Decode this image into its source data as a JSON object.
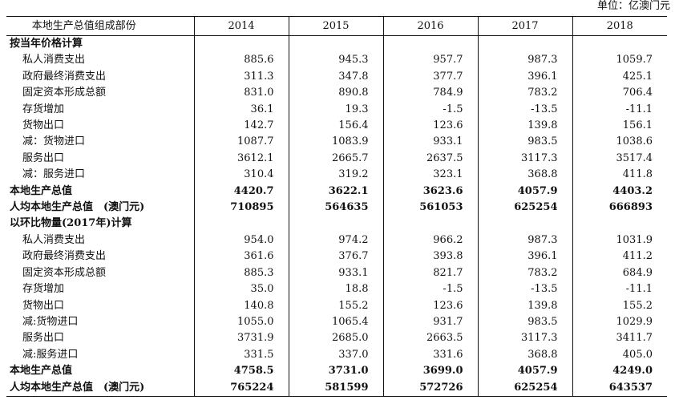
{
  "unit_label": "单位：亿澳门元",
  "table": {
    "header": [
      "本地生产总值组成部份",
      "2014",
      "2015",
      "2016",
      "2017",
      "2018"
    ],
    "rows": [
      {
        "label": "按当年价格计算",
        "values": [
          "",
          "",
          "",
          "",
          ""
        ],
        "style": "section"
      },
      {
        "label": "私人消费支出",
        "values": [
          "885.6",
          "945.3",
          "957.7",
          "987.3",
          "1059.7"
        ],
        "style": "item"
      },
      {
        "label": "政府最终消费支出",
        "values": [
          "311.3",
          "347.8",
          "377.7",
          "396.1",
          "425.1"
        ],
        "style": "item"
      },
      {
        "label": "固定资本形成总额",
        "values": [
          "831.0",
          "890.8",
          "784.9",
          "783.2",
          "706.4"
        ],
        "style": "item"
      },
      {
        "label": "存货增加",
        "values": [
          "36.1",
          "19.3",
          "-1.5",
          "-13.5",
          "-11.1"
        ],
        "style": "item"
      },
      {
        "label": "货物出口",
        "values": [
          "142.7",
          "156.4",
          "123.6",
          "139.8",
          "156.1"
        ],
        "style": "item"
      },
      {
        "label": "减：货物进口",
        "values": [
          "1087.7",
          "1083.9",
          "933.1",
          "983.5",
          "1038.6"
        ],
        "style": "item"
      },
      {
        "label": "服务出口",
        "values": [
          "3612.1",
          "2665.7",
          "2637.5",
          "3117.3",
          "3517.4"
        ],
        "style": "item"
      },
      {
        "label": "减：服务进口",
        "values": [
          "310.4",
          "319.2",
          "323.1",
          "368.8",
          "411.8"
        ],
        "style": "item"
      },
      {
        "label": "本地生产总值",
        "values": [
          "4420.7",
          "3622.1",
          "3623.6",
          "4057.9",
          "4403.2"
        ],
        "style": "total"
      },
      {
        "label": "人均本地生产总值　(澳门元)",
        "values": [
          "710895",
          "564635",
          "561053",
          "625254",
          "666893"
        ],
        "style": "total"
      },
      {
        "label": "以环比物量(2017年)计算",
        "values": [
          "",
          "",
          "",
          "",
          ""
        ],
        "style": "section"
      },
      {
        "label": "私人消费支出",
        "values": [
          "954.0",
          "974.2",
          "966.2",
          "987.3",
          "1031.9"
        ],
        "style": "item"
      },
      {
        "label": "政府最终消费支出",
        "values": [
          "361.6",
          "376.7",
          "393.8",
          "396.1",
          "411.2"
        ],
        "style": "item"
      },
      {
        "label": "固定资本形成总额",
        "values": [
          "885.3",
          "933.1",
          "821.7",
          "783.2",
          "684.9"
        ],
        "style": "item"
      },
      {
        "label": "存货增加",
        "values": [
          "35.0",
          "18.8",
          "-1.5",
          "-13.5",
          "-11.1"
        ],
        "style": "item"
      },
      {
        "label": "货物出口",
        "values": [
          "140.8",
          "155.2",
          "123.6",
          "139.8",
          "155.2"
        ],
        "style": "item"
      },
      {
        "label": "减:货物进口",
        "values": [
          "1055.0",
          "1065.4",
          "931.7",
          "983.5",
          "1029.9"
        ],
        "style": "item"
      },
      {
        "label": "服务出口",
        "values": [
          "3731.9",
          "2685.0",
          "2663.5",
          "3117.3",
          "3411.7"
        ],
        "style": "item"
      },
      {
        "label": "减:服务进口",
        "values": [
          "331.5",
          "337.0",
          "331.6",
          "368.8",
          "405.0"
        ],
        "style": "item"
      },
      {
        "label": "本地生产总值",
        "values": [
          "4758.5",
          "3731.0",
          "3699.0",
          "4057.9",
          "4249.0"
        ],
        "style": "total"
      },
      {
        "label": "人均本地生产总值　(澳门元)",
        "values": [
          "765224",
          "581599",
          "572726",
          "625254",
          "643537"
        ],
        "style": "total"
      }
    ]
  }
}
